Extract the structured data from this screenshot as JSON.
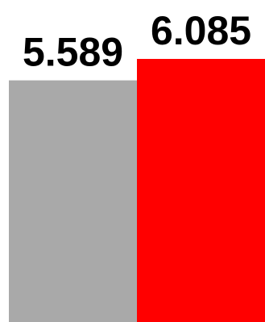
{
  "chart_data": {
    "type": "bar",
    "categories": [
      "",
      ""
    ],
    "values": [
      5.589,
      6.085
    ],
    "labels": [
      "5.589",
      "6.085"
    ],
    "colors": [
      "#a9a9a9",
      "#ff0000"
    ],
    "title": "",
    "xlabel": "",
    "ylabel": "",
    "ylim": [
      0,
      6.085
    ],
    "grid": false,
    "legend": "none"
  }
}
